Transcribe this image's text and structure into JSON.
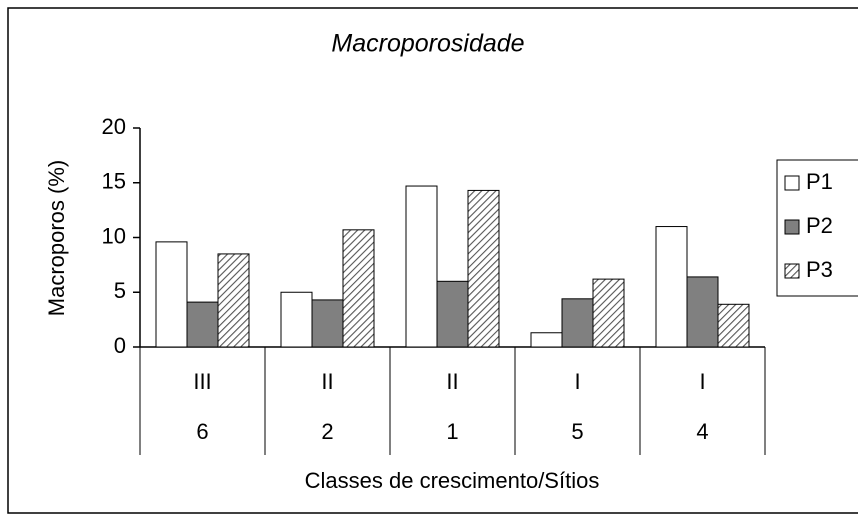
{
  "chart_data": {
    "type": "bar",
    "title": "Macroporosidade",
    "y_label": "Macroporos (%)",
    "x_label": "Classes de crescimento/Sítios",
    "category_groups": [
      "III",
      "II",
      "II",
      "I",
      "I"
    ],
    "categories": [
      "6",
      "2",
      "1",
      "5",
      "4"
    ],
    "series": [
      {
        "name": "P1",
        "color": "#ffffff",
        "values": [
          9.6,
          5.0,
          14.7,
          1.3,
          11.0
        ]
      },
      {
        "name": "P2",
        "color": "#808080",
        "values": [
          4.1,
          4.3,
          6.0,
          4.4,
          6.4
        ]
      },
      {
        "name": "P3",
        "color": "#808080",
        "hatch": true,
        "values": [
          8.5,
          10.7,
          14.3,
          6.2,
          3.9
        ]
      }
    ],
    "ylim": [
      0,
      20
    ],
    "yticks": [
      0,
      5,
      10,
      15,
      20
    ],
    "grid": false,
    "legend": "right"
  }
}
